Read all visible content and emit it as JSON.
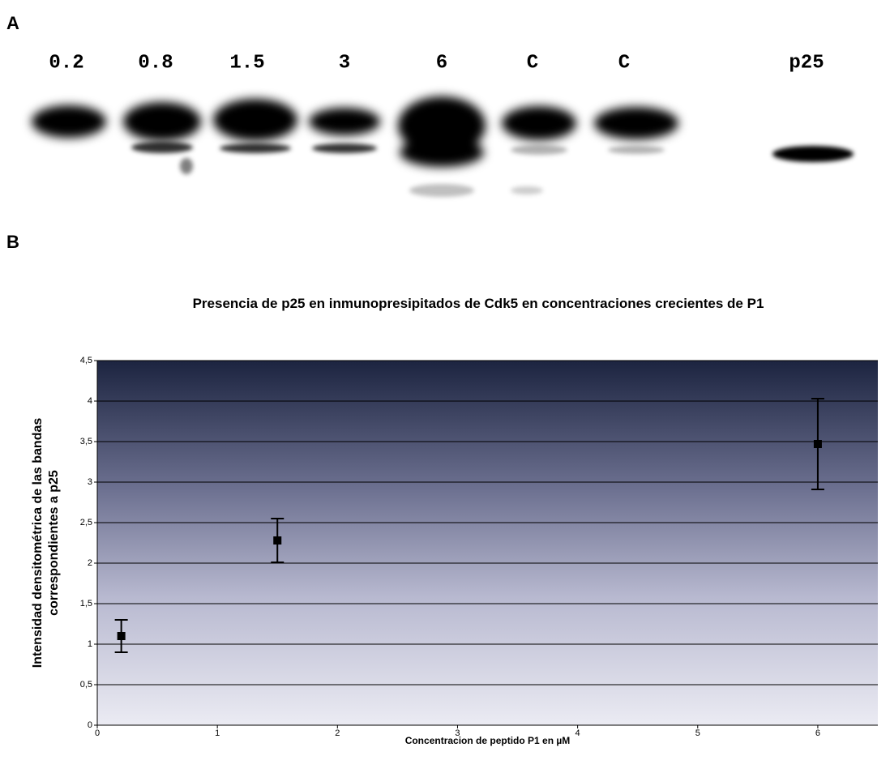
{
  "panel_labels": [
    "A",
    "B"
  ],
  "blot": {
    "lanes": [
      "0.2",
      "0.8",
      "1.5",
      "3",
      "6",
      "C",
      "C",
      "p25"
    ]
  },
  "chart_data": {
    "type": "scatter",
    "title": "Presencia de p25 en inmunopresipitados de Cdk5 en concentraciones crecientes de P1",
    "xlabel": "Concentracion de peptido P1 en µM",
    "ylabel": "Intensidad densitométrica de las bandas correspondientes a p25",
    "x": [
      0.2,
      1.5,
      6
    ],
    "values": [
      1.1,
      2.28,
      3.47
    ],
    "errors": [
      0.2,
      0.27,
      0.56
    ],
    "color": "#000000",
    "xlim": [
      0,
      6.5
    ],
    "xticks": [
      0,
      1,
      2,
      3,
      4,
      5,
      6
    ],
    "ylim": [
      0,
      4.5
    ],
    "yticks": [
      0,
      {
        "value": 0.5,
        "label": "0,5"
      },
      1,
      {
        "value": 1.5,
        "label": "1,5"
      },
      2,
      {
        "value": 2.5,
        "label": "2,5"
      },
      3,
      {
        "value": 3.5,
        "label": "3,5"
      },
      4,
      {
        "value": 4.5,
        "label": "4,5"
      }
    ],
    "grid": true
  }
}
